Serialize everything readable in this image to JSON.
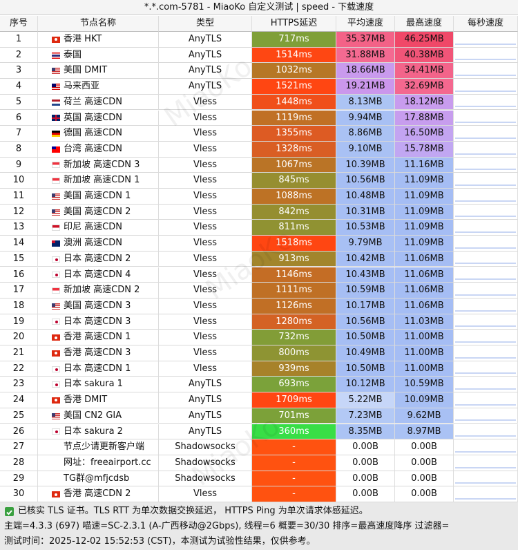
{
  "title": "*.*.com-5781 - MiaoKo 自定义测试 | speed - 下载速度",
  "watermark": "MiaoKo",
  "table": {
    "header": [
      "序号",
      "节点名称",
      "类型",
      "HTTPS延迟",
      "平均速度",
      "最高速度",
      "每秒速度"
    ],
    "rows": [
      [
        1,
        "香港 HKT",
        "AnyTLS",
        "717ms",
        "35.37MB",
        "46.25MB"
      ],
      [
        2,
        "泰国",
        "AnyTLS",
        "1514ms",
        "31.88MB",
        "40.38MB"
      ],
      [
        3,
        "美国 DMIT",
        "AnyTLS",
        "1032ms",
        "18.66MB",
        "34.41MB"
      ],
      [
        4,
        "马来西亚",
        "AnyTLS",
        "1521ms",
        "19.21MB",
        "32.69MB"
      ],
      [
        5,
        "荷兰 高速CDN",
        "Vless",
        "1448ms",
        "8.13MB",
        "18.12MB"
      ],
      [
        6,
        "英国 高速CDN",
        "Vless",
        "1119ms",
        "9.94MB",
        "17.88MB"
      ],
      [
        7,
        "德国 高速CDN",
        "Vless",
        "1355ms",
        "8.86MB",
        "16.50MB"
      ],
      [
        8,
        "台湾 高速CDN",
        "Vless",
        "1328ms",
        "9.10MB",
        "15.78MB"
      ],
      [
        9,
        "新加坡 高速CDN 3",
        "Vless",
        "1067ms",
        "10.39MB",
        "11.16MB"
      ],
      [
        10,
        "新加坡 高速CDN 1",
        "Vless",
        "845ms",
        "10.56MB",
        "11.09MB"
      ],
      [
        11,
        "美国 高速CDN 1",
        "Vless",
        "1088ms",
        "10.48MB",
        "11.09MB"
      ],
      [
        12,
        "美国 高速CDN 2",
        "Vless",
        "842ms",
        "10.31MB",
        "11.09MB"
      ],
      [
        13,
        "印尼 高速CDN",
        "Vless",
        "811ms",
        "10.53MB",
        "11.09MB"
      ],
      [
        14,
        "澳洲 高速CDN",
        "Vless",
        "1518ms",
        "9.79MB",
        "11.09MB"
      ],
      [
        15,
        "日本 高速CDN 2",
        "Vless",
        "913ms",
        "10.42MB",
        "11.06MB"
      ],
      [
        16,
        "日本 高速CDN 4",
        "Vless",
        "1146ms",
        "10.43MB",
        "11.06MB"
      ],
      [
        17,
        "新加坡 高速CDN 2",
        "Vless",
        "1111ms",
        "10.59MB",
        "11.06MB"
      ],
      [
        18,
        "美国 高速CDN 3",
        "Vless",
        "1126ms",
        "10.17MB",
        "11.06MB"
      ],
      [
        19,
        "日本 高速CDN 3",
        "Vless",
        "1280ms",
        "10.56MB",
        "11.03MB"
      ],
      [
        20,
        "香港 高速CDN 1",
        "Vless",
        "732ms",
        "10.50MB",
        "11.00MB"
      ],
      [
        21,
        "香港 高速CDN 3",
        "Vless",
        "800ms",
        "10.49MB",
        "11.00MB"
      ],
      [
        22,
        "日本 高速CDN 1",
        "Vless",
        "939ms",
        "10.50MB",
        "11.00MB"
      ],
      [
        23,
        "日本 sakura 1",
        "AnyTLS",
        "693ms",
        "10.12MB",
        "10.59MB"
      ],
      [
        24,
        "香港 DMIT",
        "AnyTLS",
        "1709ms",
        "5.22MB",
        "10.09MB"
      ],
      [
        25,
        "美国 CN2 GIA",
        "AnyTLS",
        "701ms",
        "7.23MB",
        "9.62MB"
      ],
      [
        26,
        "日本 sakura 2",
        "AnyTLS",
        "360ms",
        "8.35MB",
        "8.97MB"
      ],
      [
        27,
        "节点少请更新客户端",
        "Shadowsocks",
        "-",
        "0.00B",
        "0.00B"
      ],
      [
        28,
        "网址：freeairport.cc",
        "Shadowsocks",
        "-",
        "0.00B",
        "0.00B"
      ],
      [
        29,
        "TG群@mfjcdsb",
        "Shadowsocks",
        "-",
        "0.00B",
        "0.00B"
      ],
      [
        30,
        "香港 高速CDN 2",
        "Vless",
        "-",
        "0.00B",
        "0.00B"
      ]
    ]
  },
  "footer": [
    "已核实 TLS 证书。TLS RTT 为单次数据交换延迟， HTTPS Ping 为单次请求体感延迟。",
    "主端=4.3.3 (697) 喵速=SC-2.3.1 (A-广西移动@2Gbps), 线程=6 概要=30/30 排序=最高速度降序 过滤器=",
    "测试时间：2025-12-02 15:52:53 (CST)，本测试为试验性结果，仅供参考。"
  ]
}
